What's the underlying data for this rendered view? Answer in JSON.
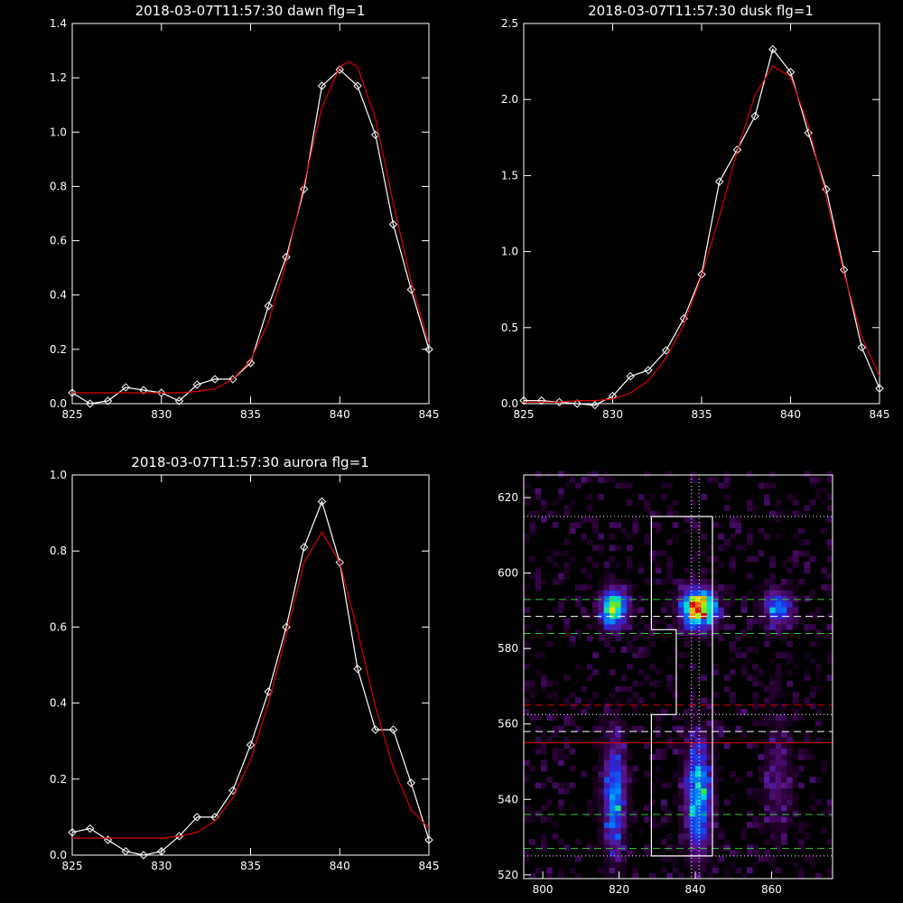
{
  "colors": {
    "background": "#000000",
    "axes": "#ffffff",
    "observed": "#ffffff",
    "fit": "#dd0000",
    "green_lines": "#33cc33",
    "red_lines": "#dd0000",
    "white_lines": "#ffffff"
  },
  "chart_data": [
    {
      "type": "line",
      "panel": "top-left",
      "title": "2018-03-07T11:57:30 dawn flg=1",
      "xlim": [
        825,
        845
      ],
      "ylim": [
        0,
        1.4
      ],
      "xticks": [
        "825",
        "830",
        "835",
        "840",
        "845"
      ],
      "yticks": [
        "0.0",
        "0.2",
        "0.4",
        "0.6",
        "0.8",
        "1.0",
        "1.2",
        "1.4"
      ],
      "series": [
        {
          "role": "observed",
          "marker": "diamond",
          "x": [
            825,
            826,
            827,
            828,
            829,
            830,
            831,
            832,
            833,
            834,
            835,
            836,
            837,
            838,
            839,
            840,
            841,
            842,
            843,
            844,
            845
          ],
          "y": [
            0.04,
            0.0,
            0.01,
            0.06,
            0.05,
            0.04,
            0.01,
            0.07,
            0.09,
            0.09,
            0.15,
            0.36,
            0.54,
            0.79,
            1.17,
            1.23,
            1.17,
            0.99,
            0.66,
            0.42,
            0.2
          ]
        },
        {
          "role": "fit",
          "x": [
            825,
            826,
            827,
            828,
            829,
            830,
            831,
            832,
            833,
            834,
            835,
            836,
            837,
            838,
            839,
            840,
            840.5,
            841,
            842,
            843,
            844,
            845
          ],
          "y": [
            0.04,
            0.04,
            0.04,
            0.04,
            0.04,
            0.04,
            0.04,
            0.045,
            0.055,
            0.09,
            0.16,
            0.3,
            0.52,
            0.81,
            1.09,
            1.24,
            1.26,
            1.24,
            1.05,
            0.74,
            0.45,
            0.22
          ]
        }
      ]
    },
    {
      "type": "line",
      "panel": "top-right",
      "title": "2018-03-07T11:57:30 dusk flg=1",
      "xlim": [
        825,
        845
      ],
      "ylim": [
        0,
        2.5
      ],
      "xticks": [
        "825",
        "830",
        "835",
        "840",
        "845"
      ],
      "yticks": [
        "0.0",
        "0.5",
        "1.0",
        "1.5",
        "2.0",
        "2.5"
      ],
      "series": [
        {
          "role": "observed",
          "marker": "diamond",
          "x": [
            825,
            826,
            827,
            828,
            829,
            830,
            831,
            832,
            833,
            834,
            835,
            836,
            837,
            838,
            839,
            840,
            841,
            842,
            843,
            844,
            845
          ],
          "y": [
            0.02,
            0.02,
            0.01,
            0.0,
            -0.01,
            0.05,
            0.18,
            0.22,
            0.35,
            0.56,
            0.85,
            1.46,
            1.67,
            1.89,
            2.33,
            2.18,
            1.78,
            1.41,
            0.88,
            0.37,
            0.1
          ]
        },
        {
          "role": "fit",
          "x": [
            825,
            826,
            827,
            828,
            829,
            830,
            831,
            832,
            833,
            834,
            835,
            836,
            837,
            838,
            839,
            840,
            841,
            842,
            843,
            844,
            845
          ],
          "y": [
            0.01,
            0.01,
            0.01,
            0.02,
            0.02,
            0.03,
            0.07,
            0.15,
            0.3,
            0.52,
            0.84,
            1.23,
            1.66,
            2.03,
            2.22,
            2.15,
            1.83,
            1.36,
            0.86,
            0.44,
            0.18
          ]
        }
      ]
    },
    {
      "type": "line",
      "panel": "bottom-left",
      "title": "2018-03-07T11:57:30 aurora flg=1",
      "xlim": [
        825,
        845
      ],
      "ylim": [
        0,
        1.0
      ],
      "xticks": [
        "825",
        "830",
        "835",
        "840",
        "845"
      ],
      "yticks": [
        "0.0",
        "0.2",
        "0.4",
        "0.6",
        "0.8",
        "1.0"
      ],
      "series": [
        {
          "role": "observed",
          "marker": "diamond",
          "x": [
            825,
            826,
            827,
            828,
            829,
            830,
            831,
            832,
            833,
            834,
            835,
            836,
            837,
            838,
            839,
            840,
            841,
            842,
            843,
            844,
            845
          ],
          "y": [
            0.06,
            0.07,
            0.04,
            0.01,
            0.0,
            0.01,
            0.05,
            0.1,
            0.1,
            0.17,
            0.29,
            0.43,
            0.6,
            0.81,
            0.93,
            0.77,
            0.49,
            0.33,
            0.33,
            0.19,
            0.04
          ]
        },
        {
          "role": "fit",
          "x": [
            825,
            826,
            827,
            828,
            829,
            830,
            831,
            832,
            833,
            834,
            835,
            836,
            837,
            838,
            839,
            840,
            841,
            842,
            843,
            844,
            845
          ],
          "y": [
            0.045,
            0.045,
            0.045,
            0.045,
            0.045,
            0.045,
            0.05,
            0.06,
            0.09,
            0.15,
            0.25,
            0.4,
            0.58,
            0.77,
            0.85,
            0.77,
            0.59,
            0.39,
            0.23,
            0.12,
            0.07
          ]
        }
      ]
    },
    {
      "type": "heatmap",
      "panel": "bottom-right",
      "xlim": [
        795,
        876
      ],
      "ylim": [
        519,
        626
      ],
      "xticks": [
        "800",
        "820",
        "840",
        "860"
      ],
      "yticks": [
        "520",
        "540",
        "560",
        "580",
        "600",
        "620"
      ],
      "blobs": [
        {
          "x": 818,
          "y": 590,
          "sx": 2.5,
          "sy": 3.5,
          "amp": 0.72
        },
        {
          "x": 840,
          "y": 590,
          "sx": 3.0,
          "sy": 3.5,
          "amp": 1.0
        },
        {
          "x": 861,
          "y": 590,
          "sx": 2.5,
          "sy": 3.0,
          "amp": 0.5
        },
        {
          "x": 818,
          "y": 540,
          "sx": 2.0,
          "sy": 10.0,
          "amp": 0.5
        },
        {
          "x": 840,
          "y": 540,
          "sx": 2.2,
          "sy": 10.0,
          "amp": 0.62
        },
        {
          "x": 861,
          "y": 545,
          "sx": 2.5,
          "sy": 10.0,
          "amp": 0.18
        }
      ],
      "lines": [
        {
          "orientation": "h",
          "value": 615,
          "color": "#ffffff",
          "style": "dotted"
        },
        {
          "orientation": "h",
          "value": 593,
          "color": "#33cc33",
          "style": "dashed"
        },
        {
          "orientation": "h",
          "value": 588.5,
          "color": "#ffffff",
          "style": "dashed"
        },
        {
          "orientation": "h",
          "value": 584,
          "color": "#33cc33",
          "style": "dashed"
        },
        {
          "orientation": "h",
          "value": 565,
          "color": "#dd0000",
          "style": "dashed"
        },
        {
          "orientation": "h",
          "value": 562.5,
          "color": "#ffffff",
          "style": "dotted"
        },
        {
          "orientation": "h",
          "value": 558,
          "color": "#ffffff",
          "style": "dashed"
        },
        {
          "orientation": "h",
          "value": 555,
          "color": "#dd0000",
          "style": "solid"
        },
        {
          "orientation": "h",
          "value": 536,
          "color": "#33cc33",
          "style": "dashed"
        },
        {
          "orientation": "h",
          "value": 527,
          "color": "#33cc33",
          "style": "dashed"
        },
        {
          "orientation": "h",
          "value": 525,
          "color": "#ffffff",
          "style": "dotted"
        },
        {
          "orientation": "v",
          "value": 839,
          "color": "#ffffff",
          "style": "dotted"
        },
        {
          "orientation": "v",
          "value": 841,
          "color": "#ffffff",
          "style": "dotted"
        }
      ],
      "outline": [
        [
          828.5,
          615
        ],
        [
          844.5,
          615
        ],
        [
          844.5,
          525
        ],
        [
          828.5,
          525
        ],
        [
          828.5,
          562.5
        ],
        [
          835,
          562.5
        ],
        [
          835,
          585
        ],
        [
          828.5,
          585
        ],
        [
          828.5,
          615
        ]
      ]
    }
  ]
}
